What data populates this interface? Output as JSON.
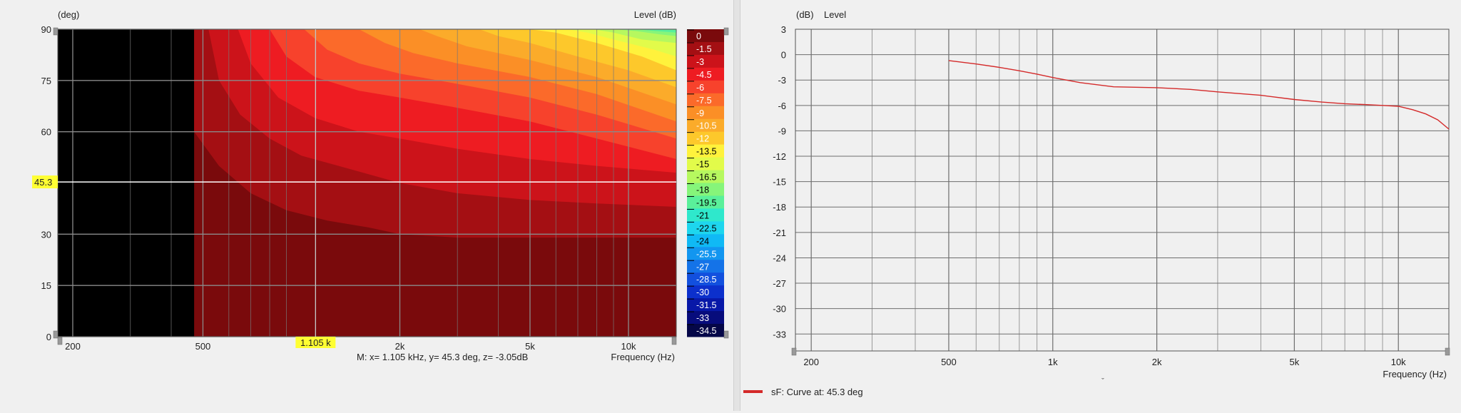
{
  "left_chart": {
    "y_unit": "(deg)",
    "legend_title": "Level  (dB)",
    "y_ticks": [
      "90",
      "75",
      "60",
      "45.3",
      "30",
      "15",
      "0"
    ],
    "x_ticks": [
      "200",
      "500",
      "1.105 k",
      "2k",
      "5k",
      "10k"
    ],
    "x_axis_label": "Frequency  (Hz)",
    "cursor_readout": "M:  x= 1.105 kHz,  y= 45.3 deg,  z= -3.05dB",
    "cursor_x_label": "1.105 k",
    "cursor_y_label": "45.3",
    "scale": [
      {
        "label": "0",
        "color": "#7a0a0c"
      },
      {
        "label": "-1.5",
        "color": "#a40f13"
      },
      {
        "label": "-3",
        "color": "#cc131a"
      },
      {
        "label": "-4.5",
        "color": "#ee1c22"
      },
      {
        "label": "-6",
        "color": "#f7422c"
      },
      {
        "label": "-7.5",
        "color": "#fb6a2a"
      },
      {
        "label": "-9",
        "color": "#fb8f26"
      },
      {
        "label": "-10.5",
        "color": "#fbab2a"
      },
      {
        "label": "-12",
        "color": "#fdc82b"
      },
      {
        "label": "-13.5",
        "color": "#fff23c"
      },
      {
        "label": "-15",
        "color": "#e2fb4a"
      },
      {
        "label": "-16.5",
        "color": "#b6f85f"
      },
      {
        "label": "-18",
        "color": "#86f57a"
      },
      {
        "label": "-19.5",
        "color": "#5af09a"
      },
      {
        "label": "-21",
        "color": "#2fe8cc"
      },
      {
        "label": "-22.5",
        "color": "#1ed6ee"
      },
      {
        "label": "-24",
        "color": "#10b9f5"
      },
      {
        "label": "-25.5",
        "color": "#1296f0"
      },
      {
        "label": "-27",
        "color": "#1473e8"
      },
      {
        "label": "-28.5",
        "color": "#1250de"
      },
      {
        "label": "-30",
        "color": "#0c30cc"
      },
      {
        "label": "-31.5",
        "color": "#0818a8"
      },
      {
        "label": "-33",
        "color": "#070c7c"
      },
      {
        "label": "-34.5",
        "color": "#050748"
      }
    ]
  },
  "chart_data": [
    {
      "type": "heatmap",
      "title": "",
      "xlabel": "Frequency  (Hz)",
      "ylabel": "(deg)",
      "zlabel": "Level  (dB)",
      "x_scale": "log",
      "xlim": [
        180,
        14000
      ],
      "ylim": [
        0,
        90
      ],
      "no_data_below_hz": 470,
      "contour_levels_db": [
        0,
        -1.5,
        -3,
        -4.5,
        -6,
        -7.5,
        -9,
        -10.5,
        -12,
        -13.5,
        -15,
        -16.5,
        -18,
        -19.5,
        -21,
        -22.5,
        -24,
        -25.5,
        -27,
        -28.5,
        -30,
        -31.5,
        -33,
        -34.5
      ],
      "cursor": {
        "x_khz": 1.105,
        "y_deg": 45.3,
        "z_db": -3.05
      },
      "contours": [
        {
          "level_db": -1.5,
          "points": [
            [
              470,
              90
            ],
            [
              470,
              60
            ],
            [
              560,
              50
            ],
            [
              700,
              42
            ],
            [
              900,
              37
            ],
            [
              1200,
              34
            ],
            [
              1600,
              32
            ],
            [
              2000,
              30
            ],
            [
              3000,
              29
            ],
            [
              5000,
              29
            ],
            [
              8000,
              29
            ],
            [
              14000,
              29
            ]
          ]
        },
        {
          "level_db": -3,
          "points": [
            [
              520,
              90
            ],
            [
              560,
              75
            ],
            [
              650,
              65
            ],
            [
              800,
              58
            ],
            [
              1000,
              53
            ],
            [
              1300,
              50
            ],
            [
              2000,
              45
            ],
            [
              3000,
              42
            ],
            [
              5000,
              40
            ],
            [
              8000,
              39
            ],
            [
              14000,
              38
            ]
          ]
        },
        {
          "level_db": -4.5,
          "points": [
            [
              640,
              90
            ],
            [
              700,
              80
            ],
            [
              850,
              70
            ],
            [
              1100,
              64
            ],
            [
              1500,
              60
            ],
            [
              2000,
              58
            ],
            [
              3000,
              55
            ],
            [
              5000,
              52
            ],
            [
              8000,
              50
            ],
            [
              14000,
              48
            ]
          ]
        },
        {
          "level_db": -6,
          "points": [
            [
              800,
              90
            ],
            [
              900,
              82
            ],
            [
              1100,
              76
            ],
            [
              1500,
              72
            ],
            [
              2000,
              70
            ],
            [
              3000,
              67
            ],
            [
              5000,
              63
            ],
            [
              8000,
              58
            ],
            [
              14000,
              52
            ]
          ]
        },
        {
          "level_db": -7.5,
          "points": [
            [
              1020,
              90
            ],
            [
              1200,
              84
            ],
            [
              1500,
              80
            ],
            [
              2000,
              77
            ],
            [
              3000,
              74
            ],
            [
              5000,
              70
            ],
            [
              8000,
              65
            ],
            [
              14000,
              58
            ]
          ]
        },
        {
          "level_db": -9,
          "points": [
            [
              1500,
              90
            ],
            [
              1800,
              86
            ],
            [
              2200,
              83
            ],
            [
              3000,
              80
            ],
            [
              5000,
              76
            ],
            [
              8000,
              71
            ],
            [
              14000,
              63
            ]
          ]
        },
        {
          "level_db": -10.5,
          "points": [
            [
              2300,
              90
            ],
            [
              2600,
              88
            ],
            [
              3200,
              85
            ],
            [
              5000,
              81
            ],
            [
              8000,
              76
            ],
            [
              14000,
              68
            ]
          ]
        },
        {
          "level_db": -12,
          "points": [
            [
              3500,
              90
            ],
            [
              4000,
              88
            ],
            [
              5000,
              86
            ],
            [
              7000,
              82
            ],
            [
              10000,
              78
            ],
            [
              14000,
              73
            ]
          ]
        },
        {
          "level_db": -13.5,
          "points": [
            [
              5000,
              90
            ],
            [
              6000,
              89
            ],
            [
              8000,
              86
            ],
            [
              11000,
              82
            ],
            [
              14000,
              78
            ]
          ]
        },
        {
          "level_db": -15,
          "points": [
            [
              6500,
              90
            ],
            [
              7500,
              89
            ],
            [
              9000,
              87
            ],
            [
              12000,
              84
            ],
            [
              14000,
              82
            ]
          ]
        },
        {
          "level_db": -16.5,
          "points": [
            [
              7800,
              90
            ],
            [
              9000,
              89
            ],
            [
              11000,
              87
            ],
            [
              14000,
              86
            ]
          ]
        },
        {
          "level_db": -18,
          "points": [
            [
              9000,
              90
            ],
            [
              10500,
              89.5
            ],
            [
              12500,
              88.5
            ],
            [
              14000,
              88
            ]
          ]
        },
        {
          "level_db": -19.5,
          "points": [
            [
              10500,
              90
            ],
            [
              12000,
              89.5
            ],
            [
              14000,
              89
            ]
          ]
        }
      ]
    },
    {
      "type": "line",
      "title": "",
      "xlabel": "Frequency  (Hz)",
      "ylabel": "(dB)  Level",
      "x_scale": "log",
      "xlim": [
        180,
        14000
      ],
      "ylim": [
        -35,
        3
      ],
      "y_ticks": [
        3,
        0,
        -3,
        -6,
        -9,
        -12,
        -15,
        -18,
        -21,
        -24,
        -27,
        -30,
        -33
      ],
      "x_ticks": [
        "200",
        "500",
        "1k",
        "2k",
        "5k",
        "10k"
      ],
      "series": [
        {
          "name": "sF: Curve at: 45.3 deg",
          "color": "#d42a2a",
          "x": [
            500,
            600,
            700,
            800,
            900,
            1000,
            1200,
            1500,
            2000,
            2500,
            3000,
            4000,
            5000,
            6000,
            7000,
            8000,
            9000,
            10000,
            11000,
            12000,
            13000,
            14000
          ],
          "y": [
            -0.7,
            -1.1,
            -1.5,
            -1.9,
            -2.3,
            -2.7,
            -3.3,
            -3.8,
            -3.9,
            -4.1,
            -4.4,
            -4.8,
            -5.3,
            -5.6,
            -5.8,
            -5.9,
            -6.0,
            -6.1,
            -6.5,
            -7.0,
            -7.7,
            -8.8
          ]
        }
      ]
    }
  ],
  "right_chart": {
    "y_unit": "(dB)",
    "y_title": "Level",
    "y_ticks": [
      "3",
      "0",
      "-3",
      "-6",
      "-9",
      "-12",
      "-15",
      "-18",
      "-21",
      "-24",
      "-27",
      "-30",
      "-33"
    ],
    "x_ticks": [
      "200",
      "500",
      "1k",
      "2k",
      "5k",
      "10k"
    ],
    "x_axis_label": "Frequency  (Hz)",
    "legend_label": "sF: Curve at: 45.3 deg",
    "legend_color": "#d42a2a"
  }
}
